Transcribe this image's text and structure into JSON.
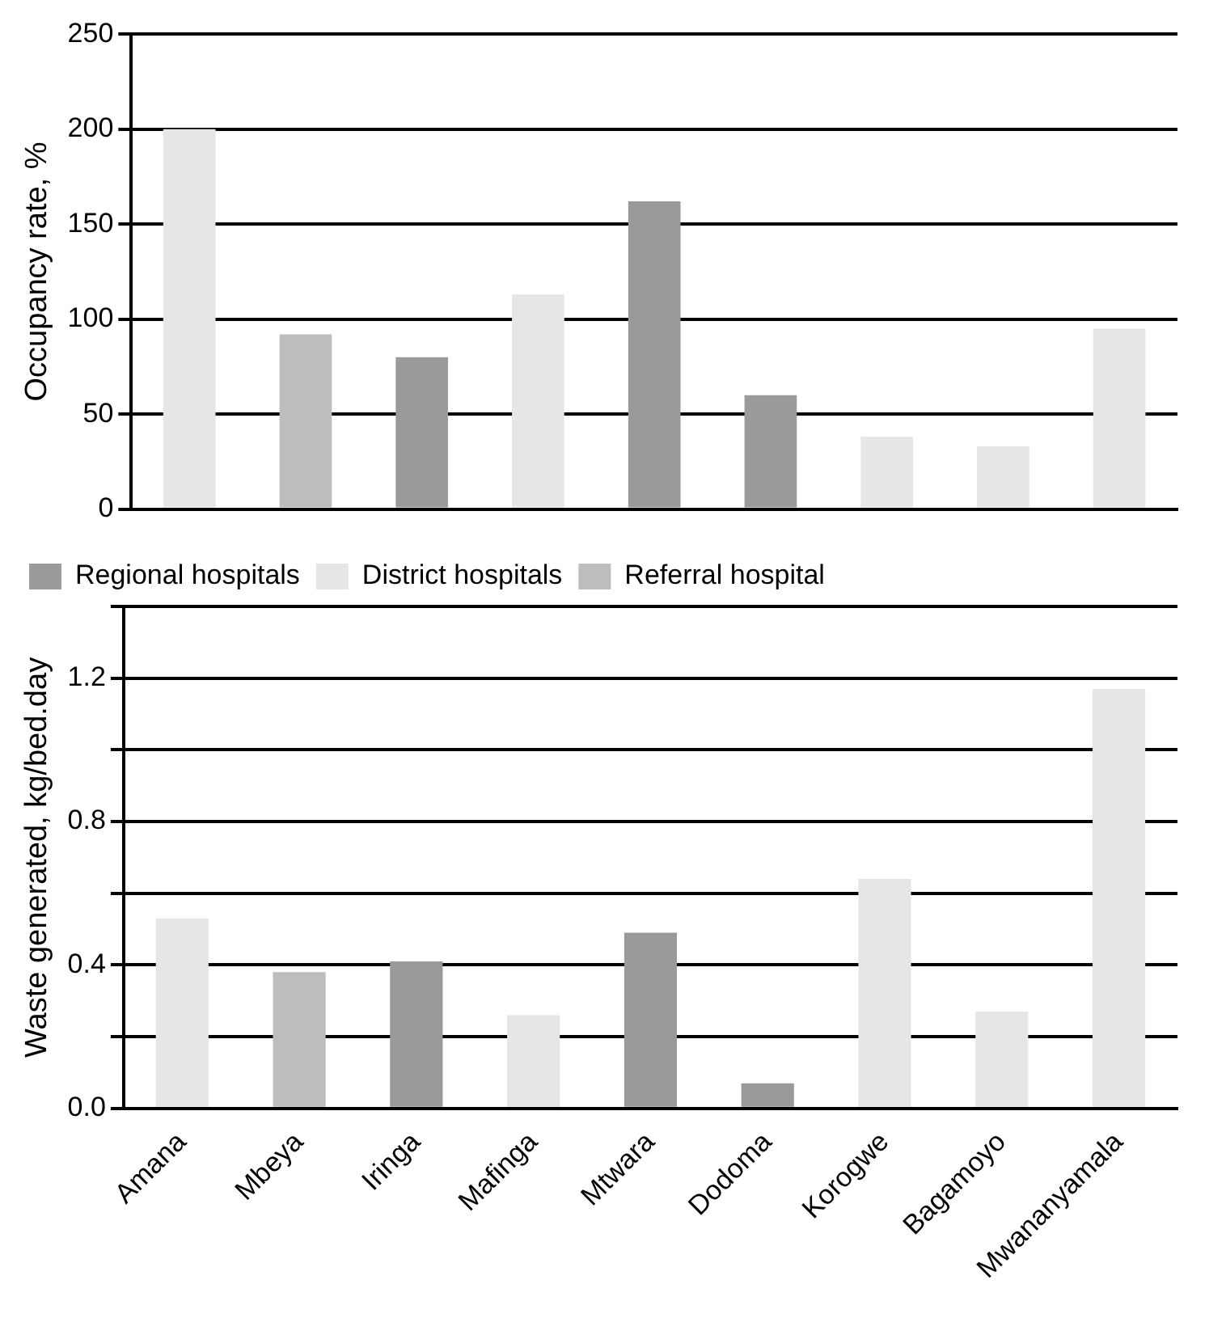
{
  "chart_data": [
    {
      "type": "bar",
      "ylabel": "Occupancy rate, %",
      "categories": [
        null,
        null,
        null,
        null,
        null,
        null,
        null,
        null,
        null
      ],
      "series": [
        {
          "color": "#9a9a9a",
          "values": [
            null,
            null,
            80,
            null,
            162,
            60,
            null,
            null,
            null
          ]
        },
        {
          "color": "#e6e6e6",
          "values": [
            200,
            null,
            null,
            113,
            null,
            null,
            38,
            33,
            95
          ]
        },
        {
          "color": "#bdbdbd",
          "values": [
            null,
            92,
            null,
            null,
            null,
            null,
            null,
            null,
            null
          ]
        }
      ],
      "ylim": [
        0,
        250
      ],
      "yticks": [
        0,
        50,
        100,
        150,
        200,
        250
      ],
      "grid": "y",
      "legend": false,
      "tick_labels": "y"
    },
    {
      "type": "bar",
      "ylabel": "Waste generated, kg/bed.day",
      "categories": [
        "Amana",
        "Mbeya",
        "Iringa",
        "Mafinga",
        "Mtwara",
        "Dodoma",
        "Korogwe",
        "Bagamoyo",
        "Mwananyamala"
      ],
      "series": [
        {
          "name": "Regional hospitals",
          "color": "#9a9a9a",
          "values": [
            null,
            null,
            0.41,
            null,
            0.49,
            0.07,
            null,
            null,
            null
          ]
        },
        {
          "name": "District hospitals",
          "color": "#e6e6e6",
          "values": [
            0.53,
            null,
            null,
            0.26,
            null,
            null,
            0.64,
            0.27,
            1.17
          ]
        },
        {
          "name": "Referral hospital",
          "color": "#bdbdbd",
          "values": [
            null,
            0.38,
            null,
            null,
            null,
            null,
            null,
            null,
            null
          ]
        }
      ],
      "ylim": [
        0,
        1.4
      ],
      "yticks": [
        {
          "value": 0,
          "label": "0.0"
        },
        {
          "value": 0.2,
          "label": null
        },
        {
          "value": 0.4,
          "label": "0.4"
        },
        {
          "value": 0.6,
          "label": null
        },
        {
          "value": 0.8,
          "label": "0.8"
        },
        {
          "value": 1.0,
          "label": null
        },
        {
          "value": 1.2,
          "label": "1.2"
        },
        {
          "value": 1.4,
          "label": null
        }
      ],
      "grid": "y",
      "legend": "top left"
    }
  ]
}
